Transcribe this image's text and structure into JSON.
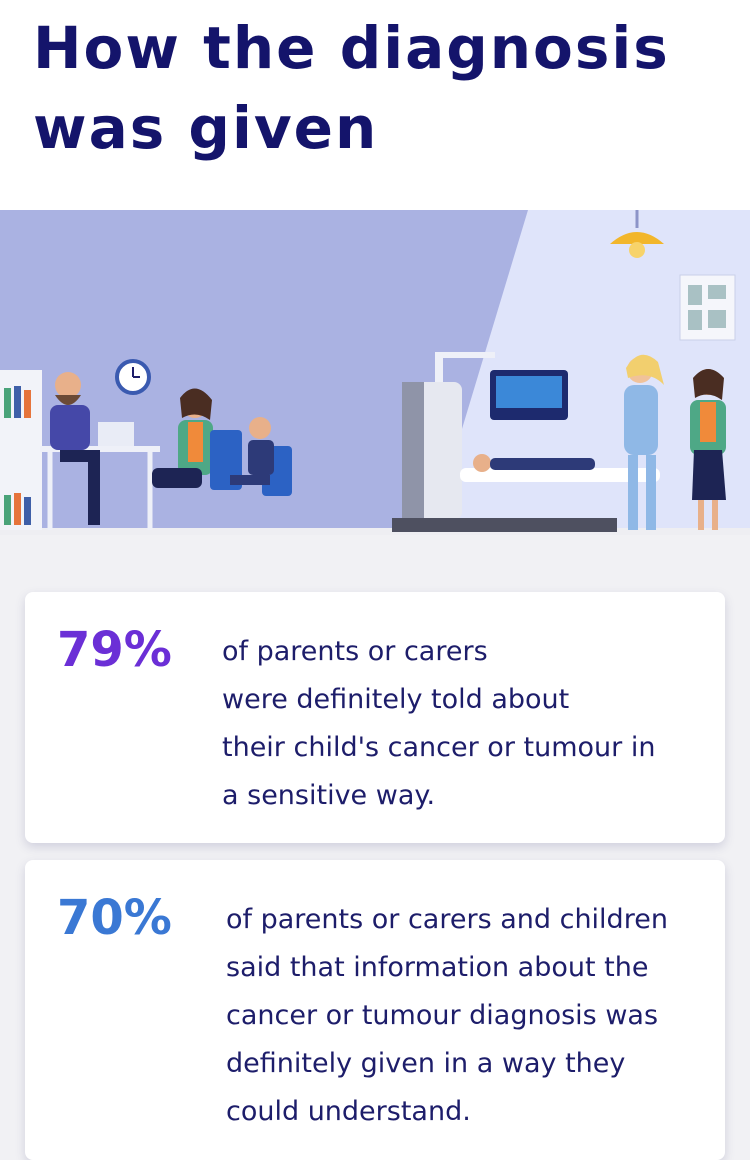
{
  "header": {
    "title": "How the diagnosis was given"
  },
  "stats": [
    {
      "percent": "79%",
      "color": "#6b2fd6",
      "lines": [
        "of parents or carers",
        "were definitely told about",
        "their child's cancer or tumour in",
        "a sensitive way."
      ]
    },
    {
      "percent": "70%",
      "color": "#3a78d4",
      "lines": [
        "of parents or carers and children",
        "said that information about the",
        "cancer or tumour diagnosis was",
        "definitely given in a way they",
        "could understand."
      ]
    }
  ]
}
